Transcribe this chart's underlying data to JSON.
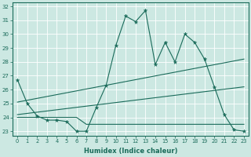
{
  "xlabel": "Humidex (Indice chaleur)",
  "bg_color": "#cce8e2",
  "line_color": "#1a6b5a",
  "xlim": [
    -0.5,
    23.5
  ],
  "ylim": [
    22.7,
    32.3
  ],
  "yticks": [
    23,
    24,
    25,
    26,
    27,
    28,
    29,
    30,
    31,
    32
  ],
  "xticks": [
    0,
    1,
    2,
    3,
    4,
    5,
    6,
    7,
    8,
    9,
    10,
    11,
    12,
    13,
    14,
    15,
    16,
    17,
    18,
    19,
    20,
    21,
    22,
    23
  ],
  "series1_x": [
    0,
    1,
    2,
    3,
    4,
    5,
    6,
    7,
    8,
    9,
    10,
    11,
    12,
    13,
    14,
    15,
    16,
    17,
    18,
    19,
    20,
    21,
    22,
    23
  ],
  "series1_y": [
    26.7,
    25.0,
    24.1,
    23.8,
    23.8,
    23.7,
    23.0,
    23.0,
    24.7,
    26.3,
    29.2,
    31.3,
    30.9,
    31.7,
    27.8,
    29.4,
    28.0,
    30.0,
    29.4,
    28.2,
    26.2,
    24.2,
    23.1,
    23.0
  ],
  "series2_x": [
    0,
    1,
    2,
    3,
    4,
    5,
    6,
    7,
    8,
    9,
    10,
    11,
    12,
    13,
    14,
    15,
    16,
    17,
    18,
    19,
    20,
    21,
    22,
    23
  ],
  "series2_y": [
    24.0,
    24.0,
    24.0,
    24.0,
    24.0,
    24.0,
    24.0,
    23.5,
    23.5,
    23.5,
    23.5,
    23.5,
    23.5,
    23.5,
    23.5,
    23.5,
    23.5,
    23.5,
    23.5,
    23.5,
    23.5,
    23.5,
    23.5,
    23.5
  ],
  "series3_x": [
    0,
    23
  ],
  "series3_y": [
    24.2,
    26.2
  ],
  "series4_x": [
    0,
    23
  ],
  "series4_y": [
    25.1,
    28.2
  ]
}
